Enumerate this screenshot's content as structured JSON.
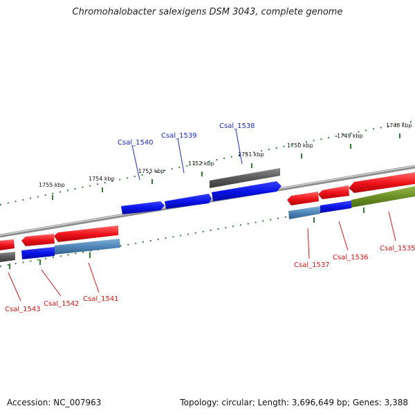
{
  "header": {
    "title": "Chromohalobacter salexigens DSM 3043, complete genome"
  },
  "footer": {
    "accession": "Accession: NC_007963",
    "summary": "Topology: circular; Length: 3,696,649 bp; Genes: 3,388"
  },
  "colors": {
    "backbone": "#8c8c8c",
    "tick": "#2f7d2f",
    "gene_blue": "#0a14e8",
    "gene_red": "#f0151c",
    "gene_steel": "#4f86b8",
    "gene_gray": "#5a5a5a",
    "gene_olive": "#6c8f25",
    "label_blue": "#1a2bb5",
    "label_red": "#d01515"
  },
  "ticks": [
    "1755 kbp",
    "1754 kbp",
    "1753 kbp",
    "1752 kbp",
    "1751 kbp",
    "1750 kbp",
    "1749 kbp",
    "1748 kbp"
  ],
  "genes": [
    {
      "name": "Csal_1540",
      "strand": "forward",
      "color": "gene_blue"
    },
    {
      "name": "Csal_1539",
      "strand": "forward",
      "color": "gene_blue"
    },
    {
      "name": "Csal_1538",
      "strand": "forward",
      "color": "gene_blue"
    },
    {
      "name": "Csal_1537",
      "strand": "reverse",
      "color": "gene_steel"
    },
    {
      "name": "Csal_1536",
      "strand": "reverse",
      "color": "gene_blue"
    },
    {
      "name": "Csal_1535",
      "strand": "reverse",
      "color": "gene_olive"
    },
    {
      "name": "Csal_1543",
      "strand": "reverse",
      "color": "gene_gray"
    },
    {
      "name": "Csal_1542",
      "strand": "reverse",
      "color": "gene_blue"
    },
    {
      "name": "Csal_1541",
      "strand": "reverse",
      "color": "gene_steel"
    }
  ]
}
